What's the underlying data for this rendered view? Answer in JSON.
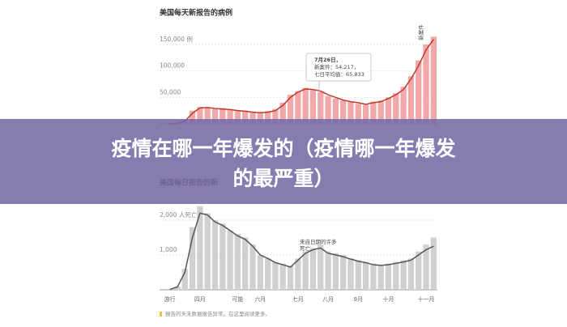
{
  "chart_data": [
    {
      "type": "bar",
      "title": "美国每天新报告的病例",
      "categories": [
        null,
        null,
        null,
        null,
        null,
        null,
        null,
        null,
        null,
        null,
        null,
        null,
        null,
        null,
        null,
        null,
        null,
        null,
        null,
        null,
        null,
        null,
        null,
        null,
        null,
        null,
        null,
        null,
        null,
        null,
        null,
        null,
        null,
        null,
        null,
        null
      ],
      "series": [
        {
          "color": "#f0a8a8",
          "values": [
            0,
            2000,
            8000,
            25000,
            32000,
            30000,
            28000,
            30000,
            26000,
            24000,
            25000,
            21000,
            22000,
            24000,
            28000,
            40000,
            55000,
            62000,
            68000,
            64000,
            60000,
            52000,
            48000,
            44000,
            41000,
            38000,
            36000,
            42000,
            44000,
            50000,
            58000,
            70000,
            90000,
            120000,
            150000,
            165000
          ]
        },
        {
          "type": "line",
          "color": "#c0392b",
          "values": [
            0,
            1000,
            5000,
            20000,
            30000,
            31000,
            29000,
            28000,
            27000,
            25000,
            24000,
            22000,
            21000,
            22000,
            25000,
            35000,
            50000,
            60000,
            66000,
            65000,
            62000,
            55000,
            50000,
            45000,
            42000,
            40000,
            37000,
            40000,
            42000,
            48000,
            55000,
            65000,
            85000,
            110000,
            140000,
            160000
          ]
        }
      ],
      "ylim": [
        0,
        170000
      ],
      "yticks": [
        {
          "value": 50000,
          "label": "50,000"
        },
        {
          "value": 100000,
          "label": "100,000"
        },
        {
          "value": 150000,
          "label": "150,000 例"
        }
      ],
      "grid": true,
      "annotations": [
        "7月26日，",
        "新案件：54,217，",
        "七日平均值：65,833"
      ],
      "side_label": "新案件"
    },
    {
      "type": "bar",
      "title": "美国每日报告的新",
      "categories": [
        "游行",
        null,
        null,
        null,
        "四月",
        null,
        null,
        null,
        null,
        "可能",
        null,
        null,
        "六月",
        null,
        null,
        null,
        null,
        "七月",
        null,
        null,
        null,
        "八月",
        null,
        null,
        null,
        "9月",
        null,
        null,
        null,
        "十月",
        null,
        null,
        null,
        null,
        "十一月",
        null
      ],
      "series": [
        {
          "color": "#d0d0d0",
          "values": [
            20,
            100,
            600,
            1800,
            2400,
            2200,
            2000,
            1900,
            1700,
            1600,
            1500,
            1300,
            1000,
            900,
            800,
            750,
            700,
            900,
            1100,
            1200,
            1300,
            1100,
            1050,
            1000,
            900,
            850,
            800,
            750,
            700,
            750,
            800,
            850,
            900,
            1100,
            1300,
            1500
          ]
        },
        {
          "type": "line",
          "color": "#555555",
          "values": [
            10,
            80,
            500,
            1500,
            2200,
            2150,
            1950,
            1850,
            1700,
            1550,
            1450,
            1250,
            1000,
            900,
            780,
            720,
            650,
            850,
            1050,
            1150,
            1200,
            1050,
            1000,
            950,
            880,
            820,
            780,
            720,
            700,
            720,
            760,
            800,
            850,
            1000,
            1150,
            1250
          ]
        }
      ],
      "ylim": [
        0,
        2500
      ],
      "yticks": [
        {
          "value": 1000,
          "label": "1,000"
        },
        {
          "value": 2000,
          "label": "2,000 人死亡"
        }
      ],
      "grid": true,
      "annotations": [
        "来自日期的许多",
        "死亡"
      ],
      "footnote": "报告的天未数据报告异常。在这里阅读更多。"
    }
  ],
  "banner": {
    "line1": "疫情在哪一年爆发的（疫情哪一年爆发",
    "line2": "的最严重）"
  }
}
